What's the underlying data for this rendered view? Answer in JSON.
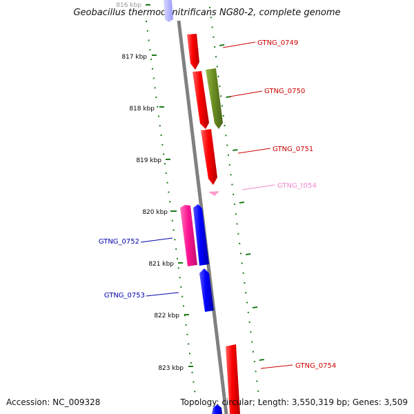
{
  "title": "Geobacillus thermodenitrificans NG80-2, complete genome",
  "accession": "Accession: NC_009328",
  "summary": "Topology: circular; Length: 3,550,319 bp; Genes: 3,509",
  "ticks": [
    "816 kbp",
    "817 kbp",
    "818 kbp",
    "819 kbp",
    "820 kbp",
    "821 kbp",
    "822 kbp",
    "823 kbp"
  ],
  "genes": [
    {
      "name": "GTNG_0749",
      "color": "#cc0000",
      "fill": "#ff0000",
      "strand": "forward"
    },
    {
      "name": "GTNG_0750",
      "color": "#cc0000",
      "fill": "#6b8e23",
      "strand": "forward"
    },
    {
      "name": "GTNG_0751",
      "color": "#cc0000",
      "fill": "#ff0000",
      "strand": "forward"
    },
    {
      "name": "GTNG_t054",
      "color": "#ee88cc",
      "fill": "#ff99cc",
      "strand": "forward"
    },
    {
      "name": "GTNG_0752",
      "color": "#0000aa",
      "fill": "#ff1493",
      "strand": "reverse"
    },
    {
      "name": "GTNG_0753",
      "color": "#0000aa",
      "fill": "#0000ff",
      "strand": "reverse"
    },
    {
      "name": "GTNG_0754",
      "color": "#cc0000",
      "fill": "#ff0000",
      "strand": "forward"
    }
  ],
  "colors": {
    "backbone": "#808080",
    "tick_marks": "#1a7a1a",
    "forward_label": "#cc0000",
    "reverse_label": "#0000aa",
    "trna_label": "#ee88cc"
  }
}
